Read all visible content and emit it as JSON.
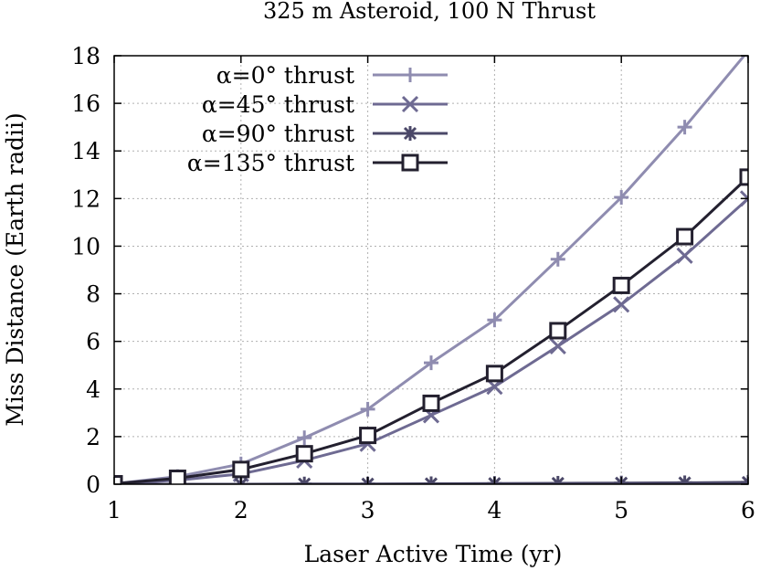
{
  "chart_data": {
    "type": "line",
    "title": "325 m Asteroid, 100 N Thrust",
    "xlabel": "Laser Active Time (yr)",
    "ylabel": "Miss Distance (Earth radii)",
    "xlim": [
      1,
      6
    ],
    "ylim": [
      0,
      18
    ],
    "xticks": [
      1,
      2,
      3,
      4,
      5,
      6
    ],
    "yticks": [
      0,
      2,
      4,
      6,
      8,
      10,
      12,
      14,
      16,
      18
    ],
    "grid": true,
    "legend_position": "top-left",
    "x": [
      1,
      1.5,
      2,
      2.5,
      3,
      3.5,
      4,
      4.5,
      5,
      5.5,
      6
    ],
    "series": [
      {
        "name": "α=0° thrust",
        "marker": "plus",
        "color": "#8f8cb0",
        "values": [
          0.02,
          0.32,
          0.85,
          1.95,
          3.15,
          5.1,
          6.9,
          9.45,
          12.05,
          15.0,
          18.2
        ]
      },
      {
        "name": "α=45° thrust",
        "marker": "x",
        "color": "#6e6a92",
        "values": [
          0.01,
          0.17,
          0.43,
          1.0,
          1.7,
          2.9,
          4.1,
          5.8,
          7.55,
          9.6,
          12.0
        ]
      },
      {
        "name": "α=90° thrust",
        "marker": "star",
        "color": "#4b4868",
        "values": [
          0.0,
          0.0,
          0.0,
          0.01,
          0.01,
          0.02,
          0.03,
          0.04,
          0.05,
          0.06,
          0.08
        ]
      },
      {
        "name": "α=135° thrust",
        "marker": "square",
        "color": "#23202f",
        "values": [
          0.02,
          0.25,
          0.62,
          1.28,
          2.05,
          3.4,
          4.65,
          6.45,
          8.35,
          10.4,
          12.9
        ]
      }
    ]
  }
}
